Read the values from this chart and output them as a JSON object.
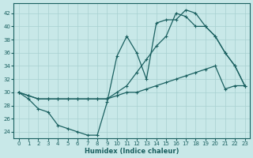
{
  "xlabel": "Humidex (Indice chaleur)",
  "xlim": [
    -0.5,
    23.5
  ],
  "ylim": [
    23,
    43.5
  ],
  "yticks": [
    24,
    26,
    28,
    30,
    32,
    34,
    36,
    38,
    40,
    42
  ],
  "xticks": [
    0,
    1,
    2,
    3,
    4,
    5,
    6,
    7,
    8,
    9,
    10,
    11,
    12,
    13,
    14,
    15,
    16,
    17,
    18,
    19,
    20,
    21,
    22,
    23
  ],
  "bg_color": "#c8e8e8",
  "grid_color": "#a8d0d0",
  "line_color": "#1a6060",
  "line1_x": [
    0,
    1,
    2,
    3,
    4,
    5,
    6,
    7,
    8,
    9,
    10,
    11,
    12,
    13,
    14,
    15,
    16,
    17,
    18,
    19,
    20,
    21,
    22,
    23
  ],
  "line1_y": [
    30,
    29,
    27.5,
    27,
    25,
    24.5,
    24,
    23.5,
    23.5,
    28.5,
    35.5,
    38.5,
    36,
    32,
    40.5,
    41,
    41,
    42.5,
    42,
    40,
    38.5,
    36,
    34,
    31
  ],
  "line2_x": [
    0,
    1,
    2,
    3,
    4,
    5,
    6,
    7,
    8,
    9,
    10,
    11,
    12,
    13,
    14,
    15,
    16,
    17,
    18,
    19,
    20,
    21,
    22,
    23
  ],
  "line2_y": [
    30,
    29.5,
    29,
    29,
    29,
    29,
    29,
    29,
    29,
    29,
    29.5,
    30,
    30,
    30.5,
    31,
    31.5,
    32,
    32.5,
    33,
    33.5,
    34,
    30.5,
    31,
    31
  ],
  "line3_x": [
    0,
    1,
    2,
    3,
    4,
    5,
    6,
    7,
    8,
    9,
    10,
    11,
    12,
    13,
    14,
    15,
    16,
    17,
    18,
    19,
    20,
    21,
    22,
    23
  ],
  "line3_y": [
    30,
    29.5,
    29,
    29,
    29,
    29,
    29,
    29,
    29,
    29,
    30,
    31,
    33,
    35,
    37,
    38.5,
    42,
    41.5,
    40,
    40,
    38.5,
    36,
    34,
    31
  ]
}
